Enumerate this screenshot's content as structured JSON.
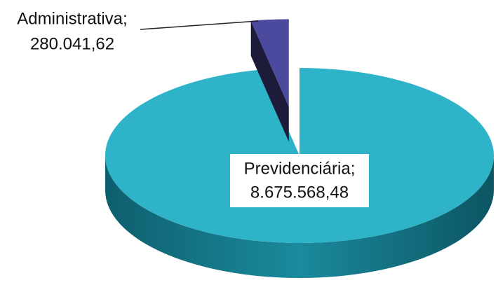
{
  "chart_data": {
    "type": "pie3d",
    "categories": [
      "Administrativa;",
      "Previdenciária;"
    ],
    "values": [
      280041.62,
      8675568.48
    ],
    "value_labels": [
      "280.041,62",
      "8.675.568,48"
    ],
    "colors": [
      "#4b4a9e",
      "#2fb3c9"
    ]
  }
}
